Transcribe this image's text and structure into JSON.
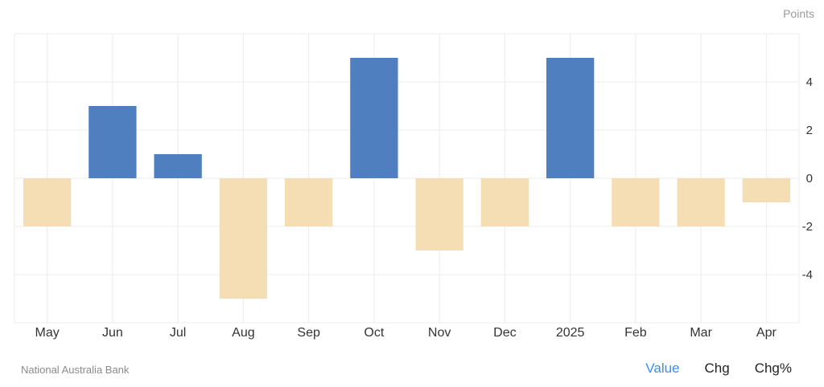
{
  "unit_label": "Points",
  "source": "National Australia Bank",
  "mode_tabs": [
    {
      "label": "Value",
      "active": true
    },
    {
      "label": "Chg",
      "active": false
    },
    {
      "label": "Chg%",
      "active": false
    }
  ],
  "colors": {
    "positive": "#4f7fbf",
    "negative": "#f5deb3",
    "grid": "#ececec",
    "active_tab": "#3a8ee6"
  },
  "chart_data": {
    "type": "bar",
    "categories": [
      "May",
      "Jun",
      "Jul",
      "Aug",
      "Sep",
      "Oct",
      "Nov",
      "Dec",
      "2025",
      "Feb",
      "Mar",
      "Apr"
    ],
    "values": [
      -2,
      3,
      1,
      -5,
      -2,
      5,
      -3,
      -2,
      5,
      -2,
      -2,
      -1
    ],
    "ylim": [
      -6,
      6
    ],
    "yticks": [
      4,
      2,
      0,
      -2,
      -4
    ],
    "y_axis_position": "right",
    "grid": true,
    "title": "",
    "xlabel": "",
    "ylabel": ""
  }
}
